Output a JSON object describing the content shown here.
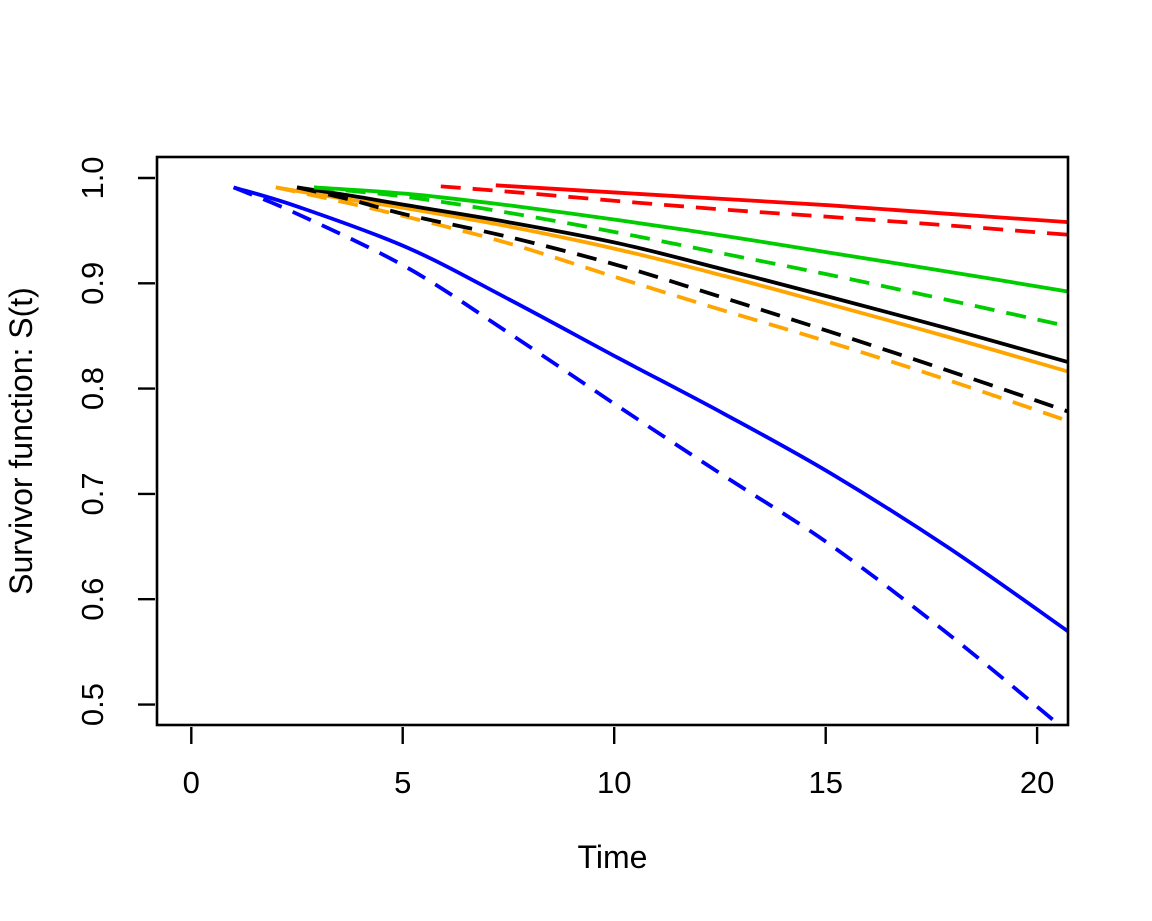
{
  "figure": {
    "background": "#FFFFFF",
    "frame_color": "#000000"
  },
  "chart_data": {
    "type": "line",
    "title": "",
    "xlabel": "Time",
    "ylabel": "Survivor function: S(t)",
    "xlim": [
      -0.81,
      20.73
    ],
    "ylim": [
      0.4806,
      1.0199
    ],
    "x_ticks": {
      "values": [
        0,
        5,
        10,
        15,
        20
      ],
      "labels": [
        "0",
        "5",
        "10",
        "15",
        "20"
      ]
    },
    "y_ticks": {
      "values": [
        0.5,
        0.6,
        0.7,
        0.8,
        0.9,
        1.0
      ],
      "labels": [
        "0.5",
        "0.6",
        "0.7",
        "0.8",
        "0.9",
        "1.0"
      ]
    },
    "grid": false,
    "legend": "none",
    "series": [
      {
        "name": "orange-solid",
        "color": "#FFA500",
        "linetype": "solid",
        "points": [
          [
            2.0,
            0.991
          ],
          [
            3.5,
            0.981
          ],
          [
            5.1,
            0.971
          ],
          [
            7.5,
            0.954
          ],
          [
            10.1,
            0.932
          ],
          [
            12.6,
            0.907
          ],
          [
            15.1,
            0.88
          ],
          [
            17.9,
            0.849
          ],
          [
            20.75,
            0.816
          ]
        ]
      },
      {
        "name": "black-solid",
        "color": "#000000",
        "linetype": "solid",
        "points": [
          [
            2.5,
            0.991
          ],
          [
            3.8,
            0.983
          ],
          [
            5.1,
            0.974
          ],
          [
            7.5,
            0.958
          ],
          [
            10.1,
            0.938
          ],
          [
            12.6,
            0.913
          ],
          [
            15.1,
            0.887
          ],
          [
            17.9,
            0.857
          ],
          [
            20.75,
            0.825
          ]
        ]
      },
      {
        "name": "green-solid",
        "color": "#00CD00",
        "linetype": "solid",
        "points": [
          [
            2.9,
            0.991
          ],
          [
            5.1,
            0.985
          ],
          [
            7.5,
            0.974
          ],
          [
            10.1,
            0.96
          ],
          [
            12.6,
            0.945
          ],
          [
            15.1,
            0.929
          ],
          [
            17.9,
            0.911
          ],
          [
            20.75,
            0.892
          ]
        ]
      },
      {
        "name": "red-solid",
        "color": "#FF0000",
        "linetype": "solid",
        "points": [
          [
            7.2,
            0.993
          ],
          [
            10.1,
            0.986
          ],
          [
            12.6,
            0.98
          ],
          [
            15.1,
            0.974
          ],
          [
            17.9,
            0.966
          ],
          [
            20.75,
            0.958
          ]
        ]
      },
      {
        "name": "blue-solid",
        "color": "#0000FF",
        "linetype": "solid",
        "points": [
          [
            1.0,
            0.991
          ],
          [
            2.5,
            0.973
          ],
          [
            5.1,
            0.934
          ],
          [
            7.5,
            0.885
          ],
          [
            10.1,
            0.829
          ],
          [
            12.6,
            0.776
          ],
          [
            15.1,
            0.72
          ],
          [
            17.9,
            0.649
          ],
          [
            20.75,
            0.569
          ]
        ]
      },
      {
        "name": "orange-dashed",
        "color": "#FFA500",
        "linetype": "dashed",
        "points": [
          [
            2.0,
            0.991
          ],
          [
            3.5,
            0.978
          ],
          [
            5.1,
            0.963
          ],
          [
            7.5,
            0.938
          ],
          [
            10.1,
            0.905
          ],
          [
            12.6,
            0.874
          ],
          [
            15.1,
            0.844
          ],
          [
            17.9,
            0.808
          ],
          [
            20.75,
            0.769
          ]
        ]
      },
      {
        "name": "black-dashed",
        "color": "#000000",
        "linetype": "dashed",
        "points": [
          [
            2.5,
            0.991
          ],
          [
            3.8,
            0.979
          ],
          [
            5.1,
            0.965
          ],
          [
            7.5,
            0.944
          ],
          [
            10.1,
            0.917
          ],
          [
            12.6,
            0.886
          ],
          [
            15.1,
            0.854
          ],
          [
            17.9,
            0.817
          ],
          [
            20.75,
            0.778
          ]
        ]
      },
      {
        "name": "green-dashed",
        "color": "#00CD00",
        "linetype": "dashed",
        "points": [
          [
            2.9,
            0.991
          ],
          [
            5.1,
            0.982
          ],
          [
            7.5,
            0.967
          ],
          [
            10.1,
            0.948
          ],
          [
            12.6,
            0.928
          ],
          [
            15.1,
            0.908
          ],
          [
            17.9,
            0.884
          ],
          [
            20.75,
            0.859
          ]
        ]
      },
      {
        "name": "red-dashed",
        "color": "#FF0000",
        "linetype": "dashed",
        "points": [
          [
            5.9,
            0.992
          ],
          [
            7.5,
            0.987
          ],
          [
            10.1,
            0.978
          ],
          [
            12.6,
            0.97
          ],
          [
            15.1,
            0.963
          ],
          [
            17.9,
            0.955
          ],
          [
            20.75,
            0.946
          ]
        ]
      },
      {
        "name": "blue-dashed",
        "color": "#0000FF",
        "linetype": "dashed",
        "points": [
          [
            1.0,
            0.991
          ],
          [
            2.5,
            0.966
          ],
          [
            5.1,
            0.915
          ],
          [
            7.5,
            0.853
          ],
          [
            10.1,
            0.783
          ],
          [
            12.6,
            0.717
          ],
          [
            15.1,
            0.652
          ],
          [
            17.9,
            0.567
          ],
          [
            20.45,
            0.483
          ]
        ]
      }
    ]
  }
}
